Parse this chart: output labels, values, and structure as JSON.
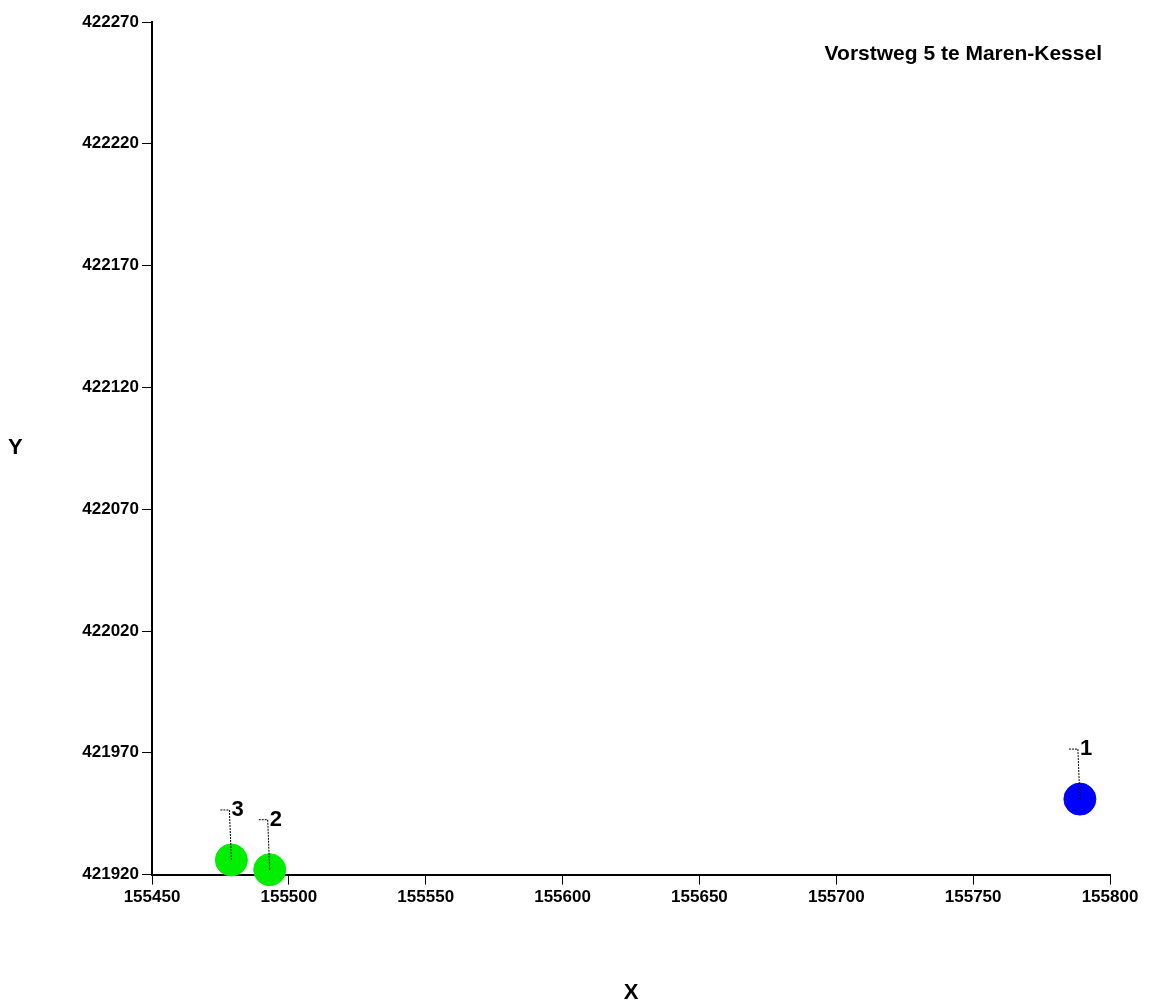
{
  "chart_data": {
    "type": "scatter",
    "title": "Vorstweg 5 te Maren-Kessel",
    "xlabel": "X",
    "ylabel": "Y",
    "x": [
      155789,
      155493,
      155479
    ],
    "values": [
      421951,
      421922,
      421926
    ],
    "colors": [
      "#0000ff",
      "#00ee00",
      "#00ee00"
    ],
    "xlim": [
      155450,
      155800
    ],
    "xticks": [
      155450,
      155500,
      155550,
      155600,
      155650,
      155700,
      155750,
      155800
    ],
    "ylim": [
      421920,
      422270
    ],
    "yticks": [
      421920,
      421970,
      422020,
      422070,
      422120,
      422170,
      422220,
      422270
    ],
    "annotations": [
      {
        "text": "1",
        "x": 155789,
        "y": 421951
      },
      {
        "text": "2",
        "x": 155493,
        "y": 421922
      },
      {
        "text": "3",
        "x": 155479,
        "y": 421926
      }
    ],
    "marker": "circle",
    "grid": false,
    "legend": false
  }
}
